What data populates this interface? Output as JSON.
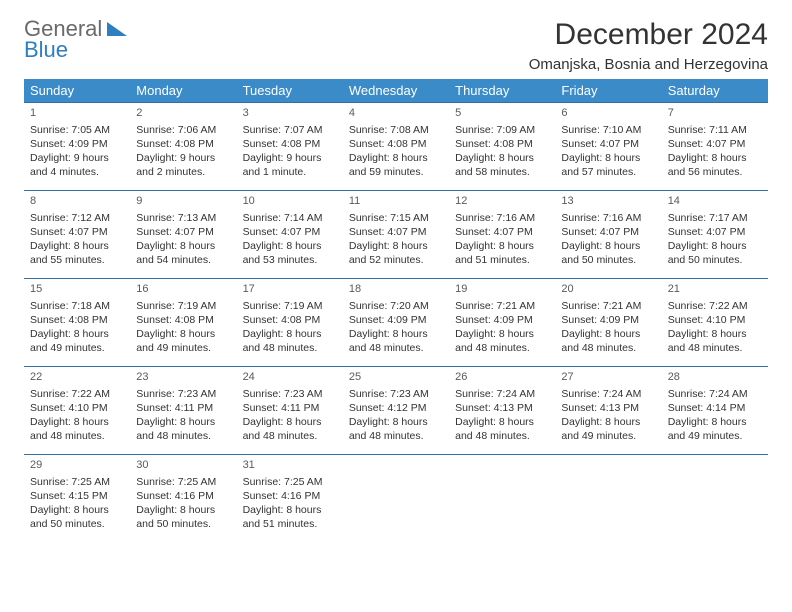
{
  "logo": {
    "general": "General",
    "blue": "Blue"
  },
  "title": "December 2024",
  "location": "Omanjska, Bosnia and Herzegovina",
  "colors": {
    "header_bg": "#3b8bc9",
    "header_text": "#ffffff",
    "row_border": "#2f6fa5",
    "logo_gray": "#6a6a6a",
    "logo_blue": "#2f7ec0"
  },
  "weekdays": [
    "Sunday",
    "Monday",
    "Tuesday",
    "Wednesday",
    "Thursday",
    "Friday",
    "Saturday"
  ],
  "weeks": [
    [
      {
        "day": "1",
        "sunrise": "Sunrise: 7:05 AM",
        "sunset": "Sunset: 4:09 PM",
        "day1": "Daylight: 9 hours",
        "day2": "and 4 minutes."
      },
      {
        "day": "2",
        "sunrise": "Sunrise: 7:06 AM",
        "sunset": "Sunset: 4:08 PM",
        "day1": "Daylight: 9 hours",
        "day2": "and 2 minutes."
      },
      {
        "day": "3",
        "sunrise": "Sunrise: 7:07 AM",
        "sunset": "Sunset: 4:08 PM",
        "day1": "Daylight: 9 hours",
        "day2": "and 1 minute."
      },
      {
        "day": "4",
        "sunrise": "Sunrise: 7:08 AM",
        "sunset": "Sunset: 4:08 PM",
        "day1": "Daylight: 8 hours",
        "day2": "and 59 minutes."
      },
      {
        "day": "5",
        "sunrise": "Sunrise: 7:09 AM",
        "sunset": "Sunset: 4:08 PM",
        "day1": "Daylight: 8 hours",
        "day2": "and 58 minutes."
      },
      {
        "day": "6",
        "sunrise": "Sunrise: 7:10 AM",
        "sunset": "Sunset: 4:07 PM",
        "day1": "Daylight: 8 hours",
        "day2": "and 57 minutes."
      },
      {
        "day": "7",
        "sunrise": "Sunrise: 7:11 AM",
        "sunset": "Sunset: 4:07 PM",
        "day1": "Daylight: 8 hours",
        "day2": "and 56 minutes."
      }
    ],
    [
      {
        "day": "8",
        "sunrise": "Sunrise: 7:12 AM",
        "sunset": "Sunset: 4:07 PM",
        "day1": "Daylight: 8 hours",
        "day2": "and 55 minutes."
      },
      {
        "day": "9",
        "sunrise": "Sunrise: 7:13 AM",
        "sunset": "Sunset: 4:07 PM",
        "day1": "Daylight: 8 hours",
        "day2": "and 54 minutes."
      },
      {
        "day": "10",
        "sunrise": "Sunrise: 7:14 AM",
        "sunset": "Sunset: 4:07 PM",
        "day1": "Daylight: 8 hours",
        "day2": "and 53 minutes."
      },
      {
        "day": "11",
        "sunrise": "Sunrise: 7:15 AM",
        "sunset": "Sunset: 4:07 PM",
        "day1": "Daylight: 8 hours",
        "day2": "and 52 minutes."
      },
      {
        "day": "12",
        "sunrise": "Sunrise: 7:16 AM",
        "sunset": "Sunset: 4:07 PM",
        "day1": "Daylight: 8 hours",
        "day2": "and 51 minutes."
      },
      {
        "day": "13",
        "sunrise": "Sunrise: 7:16 AM",
        "sunset": "Sunset: 4:07 PM",
        "day1": "Daylight: 8 hours",
        "day2": "and 50 minutes."
      },
      {
        "day": "14",
        "sunrise": "Sunrise: 7:17 AM",
        "sunset": "Sunset: 4:07 PM",
        "day1": "Daylight: 8 hours",
        "day2": "and 50 minutes."
      }
    ],
    [
      {
        "day": "15",
        "sunrise": "Sunrise: 7:18 AM",
        "sunset": "Sunset: 4:08 PM",
        "day1": "Daylight: 8 hours",
        "day2": "and 49 minutes."
      },
      {
        "day": "16",
        "sunrise": "Sunrise: 7:19 AM",
        "sunset": "Sunset: 4:08 PM",
        "day1": "Daylight: 8 hours",
        "day2": "and 49 minutes."
      },
      {
        "day": "17",
        "sunrise": "Sunrise: 7:19 AM",
        "sunset": "Sunset: 4:08 PM",
        "day1": "Daylight: 8 hours",
        "day2": "and 48 minutes."
      },
      {
        "day": "18",
        "sunrise": "Sunrise: 7:20 AM",
        "sunset": "Sunset: 4:09 PM",
        "day1": "Daylight: 8 hours",
        "day2": "and 48 minutes."
      },
      {
        "day": "19",
        "sunrise": "Sunrise: 7:21 AM",
        "sunset": "Sunset: 4:09 PM",
        "day1": "Daylight: 8 hours",
        "day2": "and 48 minutes."
      },
      {
        "day": "20",
        "sunrise": "Sunrise: 7:21 AM",
        "sunset": "Sunset: 4:09 PM",
        "day1": "Daylight: 8 hours",
        "day2": "and 48 minutes."
      },
      {
        "day": "21",
        "sunrise": "Sunrise: 7:22 AM",
        "sunset": "Sunset: 4:10 PM",
        "day1": "Daylight: 8 hours",
        "day2": "and 48 minutes."
      }
    ],
    [
      {
        "day": "22",
        "sunrise": "Sunrise: 7:22 AM",
        "sunset": "Sunset: 4:10 PM",
        "day1": "Daylight: 8 hours",
        "day2": "and 48 minutes."
      },
      {
        "day": "23",
        "sunrise": "Sunrise: 7:23 AM",
        "sunset": "Sunset: 4:11 PM",
        "day1": "Daylight: 8 hours",
        "day2": "and 48 minutes."
      },
      {
        "day": "24",
        "sunrise": "Sunrise: 7:23 AM",
        "sunset": "Sunset: 4:11 PM",
        "day1": "Daylight: 8 hours",
        "day2": "and 48 minutes."
      },
      {
        "day": "25",
        "sunrise": "Sunrise: 7:23 AM",
        "sunset": "Sunset: 4:12 PM",
        "day1": "Daylight: 8 hours",
        "day2": "and 48 minutes."
      },
      {
        "day": "26",
        "sunrise": "Sunrise: 7:24 AM",
        "sunset": "Sunset: 4:13 PM",
        "day1": "Daylight: 8 hours",
        "day2": "and 48 minutes."
      },
      {
        "day": "27",
        "sunrise": "Sunrise: 7:24 AM",
        "sunset": "Sunset: 4:13 PM",
        "day1": "Daylight: 8 hours",
        "day2": "and 49 minutes."
      },
      {
        "day": "28",
        "sunrise": "Sunrise: 7:24 AM",
        "sunset": "Sunset: 4:14 PM",
        "day1": "Daylight: 8 hours",
        "day2": "and 49 minutes."
      }
    ],
    [
      {
        "day": "29",
        "sunrise": "Sunrise: 7:25 AM",
        "sunset": "Sunset: 4:15 PM",
        "day1": "Daylight: 8 hours",
        "day2": "and 50 minutes."
      },
      {
        "day": "30",
        "sunrise": "Sunrise: 7:25 AM",
        "sunset": "Sunset: 4:16 PM",
        "day1": "Daylight: 8 hours",
        "day2": "and 50 minutes."
      },
      {
        "day": "31",
        "sunrise": "Sunrise: 7:25 AM",
        "sunset": "Sunset: 4:16 PM",
        "day1": "Daylight: 8 hours",
        "day2": "and 51 minutes."
      },
      null,
      null,
      null,
      null
    ]
  ]
}
